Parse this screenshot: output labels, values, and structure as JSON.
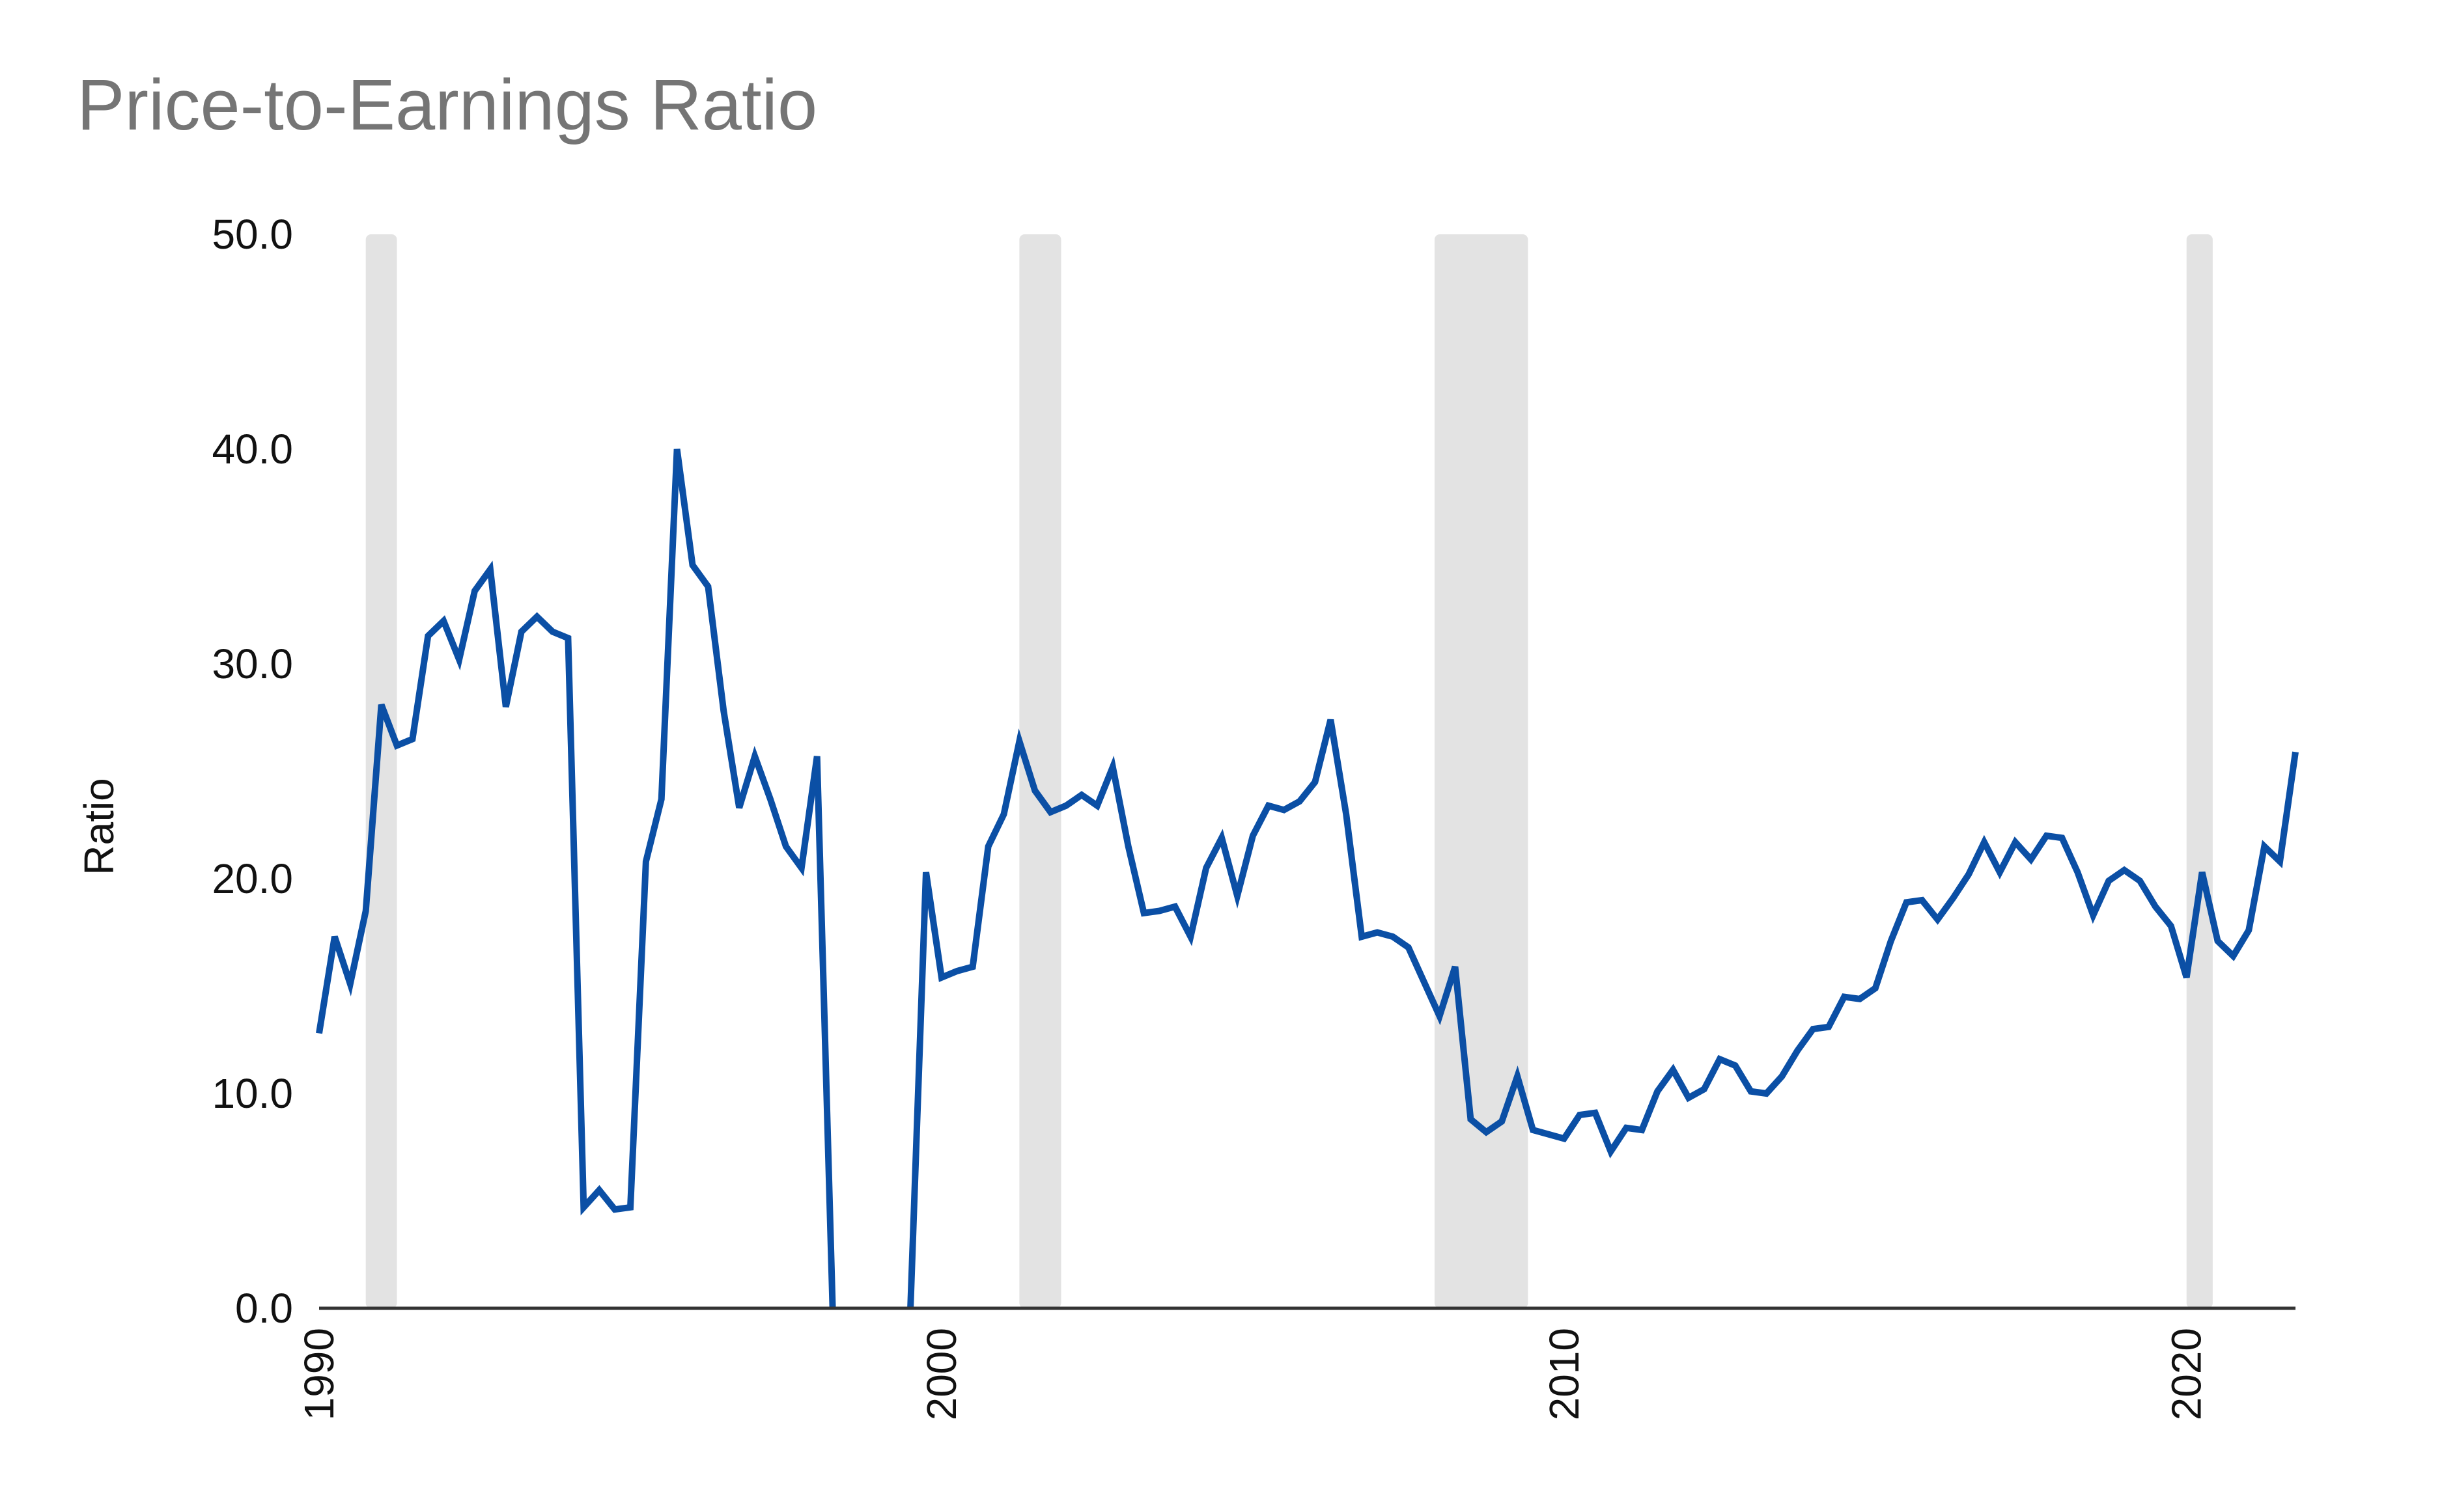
{
  "chart_data": {
    "type": "line",
    "title": "Price-to-Earnings Ratio",
    "xlabel": "",
    "ylabel": "Ratio",
    "xlim": [
      1990.0,
      2021.75
    ],
    "ylim": [
      0,
      50
    ],
    "y_ticks": [
      0,
      10,
      20,
      30,
      40,
      50
    ],
    "y_tick_labels": [
      "0.0",
      "10.0",
      "20.0",
      "30.0",
      "40.0",
      "50.0"
    ],
    "x_ticks": [
      1990,
      2000,
      2010,
      2020
    ],
    "x_tick_labels": [
      "1990",
      "2000",
      "2010",
      "2020"
    ],
    "grid": false,
    "legend": "none",
    "colors": {
      "line": "#0b4fa5",
      "recession": "#e3e3e3",
      "axis": "#333333",
      "title": "#757575",
      "text": "#111111"
    },
    "recession_bands": [
      {
        "start": 1990.75,
        "end": 1991.25
      },
      {
        "start": 2001.25,
        "end": 2001.92
      },
      {
        "start": 2007.92,
        "end": 2009.42
      },
      {
        "start": 2020.0,
        "end": 2020.42
      }
    ],
    "series": [
      {
        "segments": [
          {
            "x": [
              1990.0,
              1990.25,
              1990.5,
              1990.75,
              1991.0,
              1991.25,
              1991.5,
              1991.75,
              1992.0,
              1992.25,
              1992.5,
              1992.75,
              1993.0,
              1993.25,
              1993.5,
              1993.75,
              1994.0,
              1994.25,
              1994.5,
              1994.75,
              1995.0,
              1995.25,
              1995.5,
              1995.75,
              1996.0,
              1996.25,
              1996.5,
              1996.75,
              1997.0,
              1997.25,
              1997.5,
              1997.75,
              1998.0,
              1998.25,
              1998.5,
              1998.75,
              1999.0,
              1999.25,
              1999.5,
              1999.75,
              2000.0,
              2000.25,
              2000.5,
              2000.75,
              2001.0,
              2001.25,
              2001.5,
              2001.75,
              2002.0,
              2002.25,
              2002.5,
              2002.75,
              2003.0,
              2003.25,
              2003.5,
              2003.75,
              2004.0,
              2004.25,
              2004.5,
              2004.75,
              2005.0,
              2005.25,
              2005.5,
              2005.75,
              2006.0,
              2006.25,
              2006.5,
              2006.75,
              2007.0,
              2007.25,
              2007.5,
              2007.75,
              2008.0,
              2008.25,
              2008.5,
              2008.75,
              2009.0,
              2009.25,
              2009.5,
              2009.75,
              2010.0,
              2010.25,
              2010.5,
              2010.75,
              2011.0,
              2011.25,
              2011.5,
              2011.75,
              2012.0,
              2012.25,
              2012.5,
              2012.75,
              2013.0,
              2013.25,
              2013.5,
              2013.75,
              2014.0,
              2014.25,
              2014.5,
              2014.75,
              2015.0,
              2015.25,
              2015.5,
              2015.75,
              2016.0,
              2016.25,
              2016.5,
              2016.75,
              2017.0,
              2017.25,
              2017.5,
              2017.75,
              2018.0,
              2018.25,
              2018.5,
              2018.75,
              2019.0,
              2019.25,
              2019.5,
              2019.75,
              2020.0,
              2020.25,
              2020.5,
              2020.75,
              2021.0,
              2021.25,
              2021.5,
              2021.75
            ],
            "y": [
              12.8,
              17.3,
              15.1,
              18.5,
              28.1,
              26.2,
              26.5,
              31.3,
              32.0,
              30.2,
              33.4,
              34.4,
              28.0,
              31.5,
              32.2,
              31.5,
              31.2,
              4.7,
              5.5,
              4.6,
              4.7,
              20.8,
              23.7,
              40.0,
              34.6,
              33.6,
              27.8,
              23.3,
              25.7,
              23.7,
              21.5,
              20.5,
              25.7,
              0.0,
              null,
              null,
              null,
              null,
              0.0,
              20.3,
              15.4,
              15.7,
              15.9,
              21.5,
              23.0,
              26.4,
              24.1,
              23.1,
              23.4,
              23.9,
              23.4,
              25.2,
              21.5,
              18.4,
              18.5,
              18.7,
              17.3,
              20.5,
              21.9,
              19.2,
              22.0,
              23.4,
              23.2,
              23.6,
              24.5,
              27.4,
              23.0,
              17.3,
              17.5,
              17.3,
              16.8,
              15.2,
              13.6,
              15.9,
              8.8,
              8.2,
              8.7,
              10.8,
              8.3,
              8.1,
              7.9,
              9.0,
              9.1,
              7.3,
              8.4,
              8.3,
              10.1,
              11.1,
              9.8,
              10.2,
              11.6,
              11.3,
              10.1,
              10.0,
              10.8,
              12.0,
              13.0,
              13.1,
              14.5,
              14.4,
              14.9,
              17.1,
              18.9,
              19.0,
              18.1,
              19.1,
              20.2,
              21.7,
              20.3,
              21.7,
              20.9,
              22.0,
              21.9,
              20.3,
              18.3,
              19.9,
              20.4,
              19.9,
              18.7,
              17.8,
              15.4,
              20.3,
              17.1,
              16.4,
              17.6,
              21.5,
              20.8,
              25.9
            ]
          }
        ]
      }
    ]
  }
}
